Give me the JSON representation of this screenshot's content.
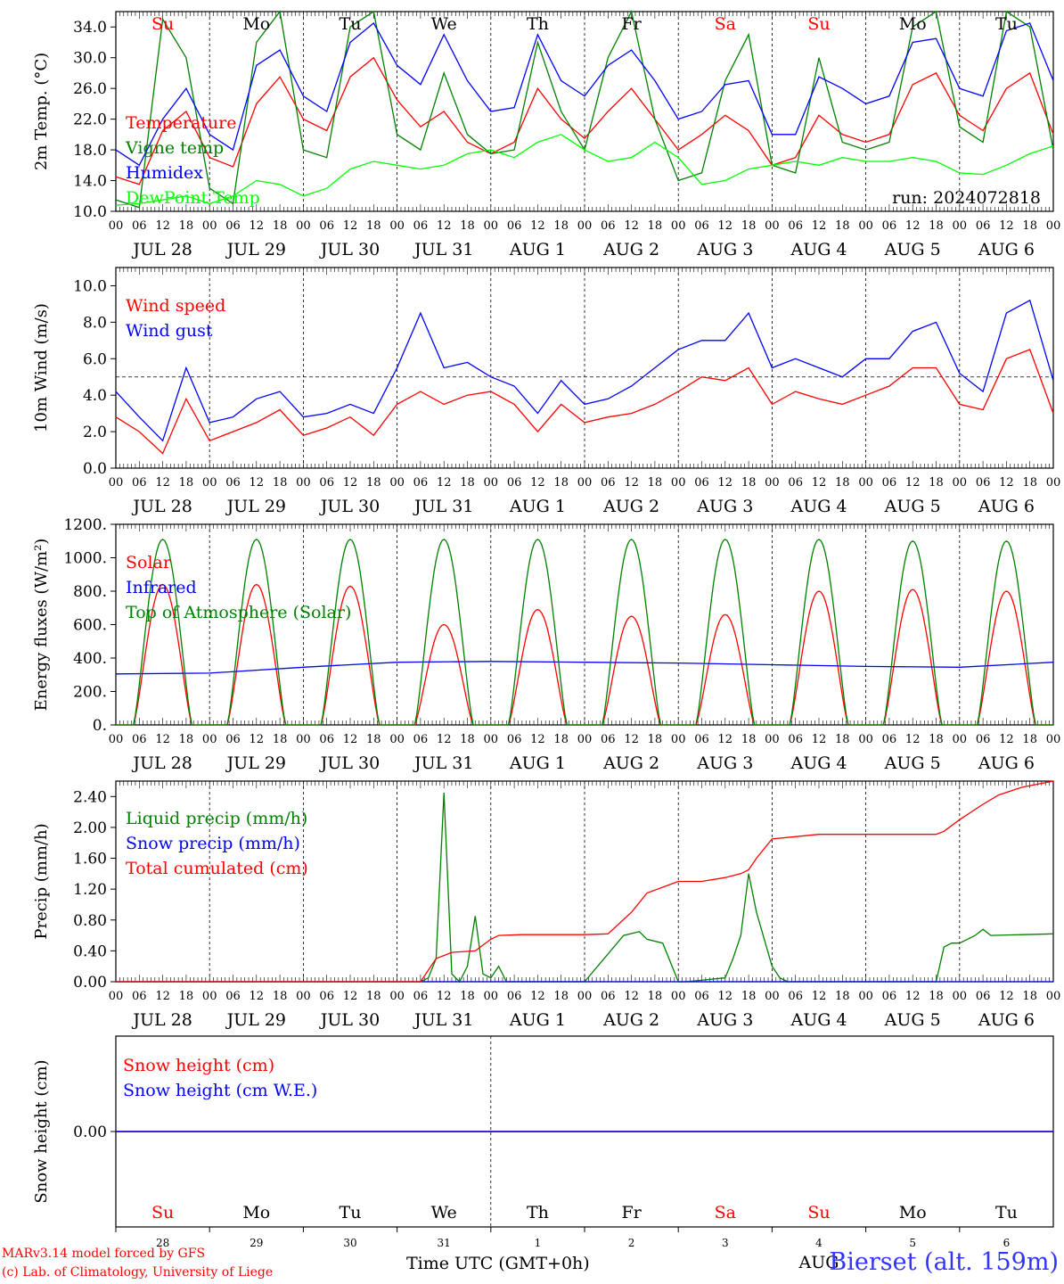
{
  "chart_data": [
    {
      "type": "line",
      "ylabel": "2m Temp. (°C)",
      "ylim": [
        10,
        36
      ],
      "yticks": [
        10.0,
        14.0,
        18.0,
        22.0,
        26.0,
        30.0,
        34.0
      ],
      "ytick_labels": [
        "10.0",
        "14.0",
        "18.0",
        "22.0",
        "26.0",
        "30.0",
        "34.0"
      ],
      "annotation": "run: 2024072818",
      "legend": [
        "Temperature",
        "Vigne temp",
        "Humidex",
        "DewPoint Temp"
      ],
      "series": [
        {
          "name": "Temperature",
          "color": "#ff0000",
          "x": [
            0,
            6,
            12,
            18,
            24,
            30,
            36,
            42,
            48,
            54,
            60,
            66,
            72,
            78,
            84,
            90,
            96,
            102,
            108,
            114,
            120,
            126,
            132,
            138,
            144,
            150,
            156,
            162,
            168,
            174,
            180,
            186,
            192,
            198,
            204,
            210,
            216,
            222,
            228,
            234,
            240
          ],
          "y": [
            14.5,
            13.5,
            20.5,
            23,
            17,
            15.8,
            24,
            27.5,
            22,
            20.5,
            27.5,
            30,
            24.5,
            21,
            23,
            19,
            17.5,
            19,
            26,
            22,
            19.5,
            23,
            26,
            22,
            18,
            20,
            22.5,
            20.5,
            16,
            17,
            22.5,
            20,
            19,
            20,
            26.5,
            28,
            22.5,
            20.5,
            26,
            28,
            20
          ]
        },
        {
          "name": "Vigne temp",
          "color": "#008000",
          "x": [
            0,
            6,
            12,
            18,
            24,
            30,
            36,
            42,
            48,
            54,
            60,
            66,
            72,
            78,
            84,
            90,
            96,
            102,
            108,
            114,
            120,
            126,
            132,
            138,
            144,
            150,
            156,
            162,
            168,
            174,
            180,
            186,
            192,
            198,
            204,
            210,
            216,
            222,
            228,
            234,
            240
          ],
          "y": [
            11.5,
            10.5,
            35,
            30,
            13,
            11,
            32,
            36,
            18,
            17,
            34,
            36,
            20,
            18,
            28,
            20,
            17.5,
            18,
            32,
            23,
            18,
            30,
            36,
            22,
            14,
            15,
            27,
            33,
            16,
            15,
            30,
            19,
            18,
            19,
            34,
            36,
            21,
            19,
            36,
            34,
            18
          ]
        },
        {
          "name": "Humidex",
          "color": "#0000ff",
          "x": [
            0,
            6,
            12,
            18,
            24,
            30,
            36,
            42,
            48,
            54,
            60,
            66,
            72,
            78,
            84,
            90,
            96,
            102,
            108,
            114,
            120,
            126,
            132,
            138,
            144,
            150,
            156,
            162,
            168,
            174,
            180,
            186,
            192,
            198,
            204,
            210,
            216,
            222,
            228,
            234,
            240
          ],
          "y": [
            18,
            16,
            22,
            26,
            20,
            18,
            29,
            31,
            25,
            23,
            32,
            34.5,
            29,
            26.5,
            33,
            27,
            23,
            23.5,
            33,
            27,
            25,
            29,
            31,
            27,
            22,
            23,
            26.5,
            27,
            20,
            20,
            27.5,
            26,
            24,
            25,
            32,
            32.5,
            26,
            25,
            33.5,
            34.5,
            27
          ]
        },
        {
          "name": "DewPoint Temp",
          "color": "#00ff00",
          "x": [
            0,
            6,
            12,
            18,
            24,
            30,
            36,
            42,
            48,
            54,
            60,
            66,
            72,
            78,
            84,
            90,
            96,
            102,
            108,
            114,
            120,
            126,
            132,
            138,
            144,
            150,
            156,
            162,
            168,
            174,
            180,
            186,
            192,
            198,
            204,
            210,
            216,
            222,
            228,
            234,
            240
          ],
          "y": [
            10.8,
            11,
            11.5,
            12,
            11,
            12,
            14,
            13.5,
            12,
            13,
            15.5,
            16.5,
            16,
            15.5,
            16,
            17.5,
            18,
            17,
            19,
            20,
            18,
            16.5,
            17,
            19,
            17,
            13.5,
            14,
            15.5,
            16,
            16.5,
            16,
            17,
            16.5,
            16.5,
            17,
            16.5,
            15,
            14.8,
            16,
            17.5,
            18.5
          ]
        }
      ]
    },
    {
      "type": "line",
      "ylabel": "10m Wind (m/s)",
      "ylim": [
        0,
        11
      ],
      "yticks": [
        0,
        2,
        4,
        6,
        8,
        10
      ],
      "ytick_labels": [
        "0.0",
        "2.0",
        "4.0",
        "6.0",
        "8.0",
        "10.0"
      ],
      "reference_line": 5,
      "legend": [
        "Wind speed",
        "Wind gust"
      ],
      "series": [
        {
          "name": "Wind speed",
          "color": "#ff0000",
          "x": [
            0,
            6,
            12,
            18,
            24,
            30,
            36,
            42,
            48,
            54,
            60,
            66,
            72,
            78,
            84,
            90,
            96,
            102,
            108,
            114,
            120,
            126,
            132,
            138,
            144,
            150,
            156,
            162,
            168,
            174,
            180,
            186,
            192,
            198,
            204,
            210,
            216,
            222,
            228,
            234,
            240
          ],
          "y": [
            2.8,
            2,
            0.8,
            3.8,
            1.5,
            2,
            2.5,
            3.2,
            1.8,
            2.2,
            2.8,
            1.8,
            3.5,
            4.2,
            3.5,
            4,
            4.2,
            3.5,
            2,
            3.5,
            2.5,
            2.8,
            3,
            3.5,
            4.2,
            5,
            4.8,
            5.5,
            3.5,
            4.2,
            3.8,
            3.5,
            4,
            4.5,
            5.5,
            5.5,
            3.5,
            3.2,
            6,
            6.5,
            3
          ]
        },
        {
          "name": "Wind gust",
          "color": "#0000ff",
          "x": [
            0,
            6,
            12,
            18,
            24,
            30,
            36,
            42,
            48,
            54,
            60,
            66,
            72,
            78,
            84,
            90,
            96,
            102,
            108,
            114,
            120,
            126,
            132,
            138,
            144,
            150,
            156,
            162,
            168,
            174,
            180,
            186,
            192,
            198,
            204,
            210,
            216,
            222,
            228,
            234,
            240
          ],
          "y": [
            4.2,
            2.8,
            1.5,
            5.5,
            2.5,
            2.8,
            3.8,
            4.2,
            2.8,
            3,
            3.5,
            3,
            5.5,
            8.5,
            5.5,
            5.8,
            5,
            4.5,
            3,
            4.8,
            3.5,
            3.8,
            4.5,
            5.5,
            6.5,
            7,
            7,
            8.5,
            5.5,
            6,
            5.5,
            5,
            6,
            6,
            7.5,
            8,
            5.2,
            4.2,
            8.5,
            9.2,
            4.8
          ]
        }
      ]
    },
    {
      "type": "line",
      "ylabel": "Energy fluxes (W/m²)",
      "ylim": [
        0,
        1200
      ],
      "yticks": [
        0,
        200,
        400,
        600,
        800,
        1000,
        1200
      ],
      "ytick_labels": [
        "0.",
        "200.",
        "400.",
        "600.",
        "800.",
        "1000.",
        "1200."
      ],
      "legend": [
        "Solar",
        "Infrared",
        "Top of Atmosphere (Solar)"
      ],
      "series": [
        {
          "name": "Solar",
          "color": "#ff0000",
          "day_peaks": [
            840,
            840,
            830,
            600,
            690,
            650,
            660,
            800,
            810,
            800
          ]
        },
        {
          "name": "Infrared",
          "color": "#0000ff",
          "x": [
            0,
            24,
            48,
            72,
            96,
            120,
            144,
            168,
            192,
            216,
            240
          ],
          "y": [
            305,
            310,
            345,
            375,
            380,
            375,
            370,
            360,
            350,
            345,
            375
          ]
        },
        {
          "name": "Top of Atmosphere (Solar)",
          "color": "#008000",
          "day_peaks": [
            1110,
            1110,
            1110,
            1110,
            1110,
            1110,
            1110,
            1110,
            1100,
            1100
          ]
        }
      ]
    },
    {
      "type": "line",
      "ylabel": "Precip (mm/h)",
      "ylim": [
        0,
        2.6
      ],
      "yticks": [
        0,
        0.4,
        0.8,
        1.2,
        1.6,
        2.0,
        2.4
      ],
      "ytick_labels": [
        "0.00",
        "0.40",
        "0.80",
        "1.20",
        "1.60",
        "2.00",
        "2.40"
      ],
      "legend": [
        "Liquid precip (mm/h)",
        "Snow precip (mm/h)",
        "Total cumulated (cm)"
      ],
      "series": [
        {
          "name": "Liquid precip (mm/h)",
          "color": "#008000",
          "x": [
            0,
            78,
            80,
            82,
            84,
            86,
            88,
            90,
            92,
            94,
            96,
            98,
            100,
            102,
            104,
            120,
            130,
            134,
            136,
            140,
            144,
            146,
            156,
            158,
            160,
            162,
            164,
            168,
            170,
            172,
            210,
            212,
            214,
            216,
            218,
            220,
            222,
            224,
            240
          ],
          "y": [
            0,
            0,
            0.05,
            0.3,
            2.45,
            0.1,
            0,
            0.2,
            0.85,
            0.1,
            0.05,
            0.2,
            0,
            0,
            0,
            0,
            0.6,
            0.65,
            0.55,
            0.5,
            0,
            0,
            0.05,
            0.3,
            0.6,
            1.4,
            0.9,
            0.2,
            0.05,
            0,
            0,
            0.45,
            0.5,
            0.5,
            0.55,
            0.6,
            0.68,
            0.6,
            0.62
          ]
        },
        {
          "name": "Snow precip (mm/h)",
          "color": "#0000ff",
          "x": [
            0,
            240
          ],
          "y": [
            0,
            0
          ]
        },
        {
          "name": "Total cumulated (cm)",
          "color": "#ff0000",
          "x": [
            0,
            78,
            82,
            86,
            92,
            96,
            98,
            104,
            120,
            126,
            132,
            136,
            144,
            150,
            156,
            160,
            162,
            164,
            168,
            180,
            192,
            204,
            210,
            212,
            216,
            222,
            226,
            232,
            240
          ],
          "y": [
            0,
            0,
            0.3,
            0.38,
            0.4,
            0.55,
            0.6,
            0.61,
            0.61,
            0.62,
            0.9,
            1.15,
            1.3,
            1.3,
            1.35,
            1.4,
            1.45,
            1.6,
            1.85,
            1.91,
            1.91,
            1.91,
            1.91,
            1.95,
            2.1,
            2.3,
            2.42,
            2.52,
            2.6
          ]
        }
      ]
    },
    {
      "type": "line",
      "ylabel": "Snow height (cm)",
      "yticks": [
        0
      ],
      "ytick_labels": [
        "0.00"
      ],
      "legend": [
        "Snow height (cm)",
        "Snow height (cm W.E.)"
      ],
      "series": [
        {
          "name": "Snow height (cm)",
          "color": "#ff0000",
          "x": [
            0,
            240
          ],
          "y": [
            0,
            0
          ]
        },
        {
          "name": "Snow height (cm W.E.)",
          "color": "#0000ff",
          "x": [
            0,
            240
          ],
          "y": [
            0,
            0
          ]
        }
      ]
    }
  ],
  "axis": {
    "hour_ticks": [
      "00",
      "06",
      "12",
      "18"
    ],
    "end_tick": "00",
    "dates": [
      "JUL 28",
      "JUL 29",
      "JUL 30",
      "JUL 31",
      "AUG  1",
      "AUG  2",
      "AUG  3",
      "AUG  4",
      "AUG  5",
      "AUG  6"
    ],
    "days": [
      "Su",
      "Mo",
      "Tu",
      "We",
      "Th",
      "Fr",
      "Sa",
      "Su",
      "Mo",
      "Tu"
    ],
    "day_colors": [
      "#ff0000",
      "#000000",
      "#000000",
      "#000000",
      "#000000",
      "#000000",
      "#ff0000",
      "#ff0000",
      "#000000",
      "#000000"
    ],
    "day_numbers": [
      "28",
      "29",
      "30",
      "31",
      "1",
      "2",
      "3",
      "4",
      "5",
      "6"
    ],
    "bottom_month": "AUG"
  },
  "footer": {
    "model_line": "MARv3.14 model forced by GFS",
    "lab_line": "(c) Lab. of Climatology, University of Liege",
    "time_label": "Time UTC (GMT+0h)",
    "location": "Bierset (alt. 159m)"
  }
}
